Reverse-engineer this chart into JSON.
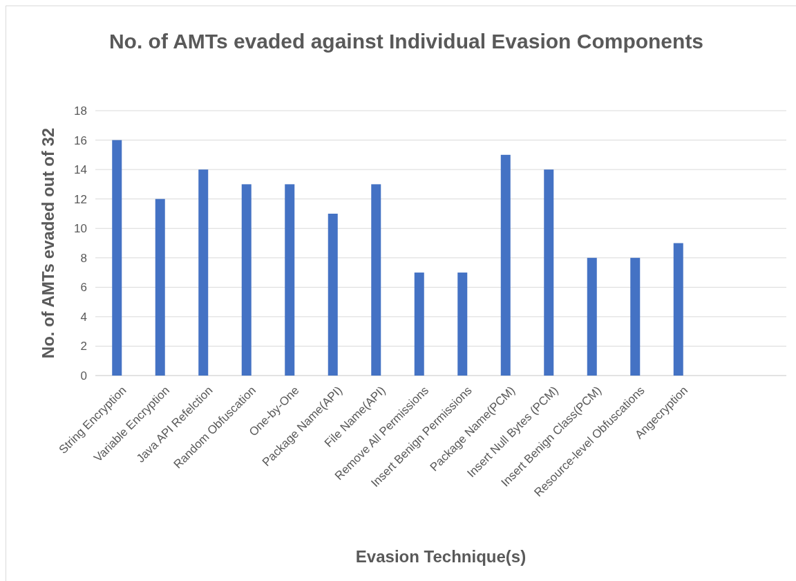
{
  "chart_data": {
    "type": "bar",
    "title": "No. of AMTs evaded against Individual Evasion Components",
    "xlabel": "Evasion Technique(s)",
    "ylabel": "No. of AMTs evaded out of 32",
    "categories": [
      "String Encryption",
      "Variable Encryption",
      "Java API Refelction",
      "Random Obfuscation",
      "One-by-One",
      "Package Name(API)",
      "File Name(API)",
      "Remove All Permissions",
      "Insert Benign Permissions",
      "Package Name(PCM)",
      "Insert Null Bytes (PCM)",
      "Insert Benign Class(PCM)",
      "Resource-level Obfuscations",
      "Angecryption",
      null,
      null
    ],
    "values": [
      16,
      12,
      14,
      13,
      13,
      11,
      13,
      7,
      7,
      15,
      14,
      8,
      8,
      9,
      null,
      null
    ],
    "color": "#4472c4",
    "ylim": [
      0,
      18
    ],
    "yticks": [
      0,
      2,
      4,
      6,
      8,
      10,
      12,
      14,
      16,
      18
    ],
    "grid": "y"
  }
}
